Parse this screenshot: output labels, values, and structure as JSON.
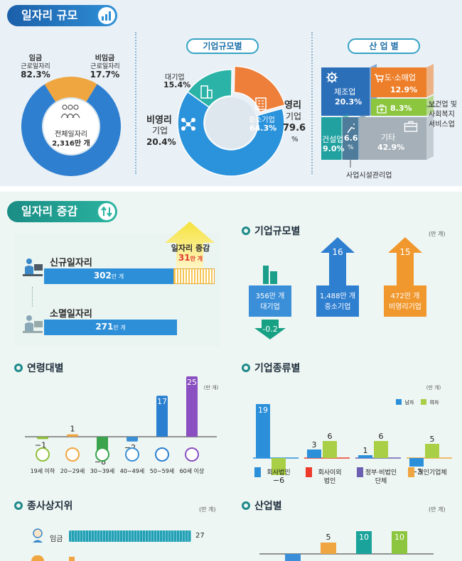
{
  "section1": {
    "title": "일자리 규모",
    "gear": {
      "left_label": [
        "임금",
        "근로일자리"
      ],
      "left_value": "82.3%",
      "right_label": [
        "비임금",
        "근로일자리"
      ],
      "right_value": "17.7%",
      "center_label": "전체일자리",
      "center_value": "2,316만 개"
    },
    "size_panel": {
      "title": "기업규모별",
      "large_label": "대기업",
      "large_value": "15.4%",
      "nonprofit_label": [
        "비영리",
        "기업"
      ],
      "nonprofit_value": "20.4%",
      "sme_label": "중소기업",
      "sme_value": "64.3%",
      "profit_label": [
        "영리",
        "기업"
      ],
      "profit_value": "79.6",
      "profit_unit": "%"
    },
    "industry_panel": {
      "title": "산 업 별",
      "manufacturing_label": "제조업",
      "manufacturing_value": "20.3%",
      "retail_label": "도·소매업",
      "retail_value": "12.9%",
      "health_value": "8.3%",
      "health_label": [
        "보건업 및",
        "사회복지",
        "서비스업"
      ],
      "construction_label": "건설업",
      "construction_value": "9.0%",
      "facility_value": "6.6",
      "facility_unit": "%",
      "other_label": "기타",
      "other_value": "42.9%",
      "facility_label": "사업시설관리업"
    }
  },
  "section2": {
    "title": "일자리 증감",
    "flow": {
      "new_label": "신규일자리",
      "new_value": "302",
      "gone_label": "소멸일자리",
      "gone_value": "271",
      "unit": "만 개",
      "net_label": "일자리 증감",
      "net_value": "31",
      "net_unit": "만 개"
    },
    "size_change": {
      "title": "기업규모별",
      "unit": "(만 개)",
      "items": [
        {
          "total": "356",
          "unit": "만 개",
          "label": "대기업",
          "change": "-0.2"
        },
        {
          "total": "1,488",
          "unit": "만 개",
          "label": "중소기업",
          "change": "16"
        },
        {
          "total": "472",
          "unit": "만 개",
          "label": "비영리기업",
          "change": "15"
        }
      ]
    },
    "status": {
      "title": "종사상지위",
      "unit": "(만 개)",
      "wage_label": "임금",
      "wage_value": "27"
    },
    "industry_change": {
      "title": "산업별",
      "unit": "(만 개)"
    }
  },
  "chart_data": [
    {
      "type": "pie",
      "title": "일자리 규모",
      "categories": [
        "임금 근로일자리",
        "비임금 근로일자리"
      ],
      "values": [
        82.3,
        17.7
      ],
      "center_text": "전체일자리 2,316만 개",
      "colors": [
        "#2e7fd0",
        "#f0a640"
      ]
    },
    {
      "type": "pie",
      "title": "기업규모별",
      "categories": [
        "대기업",
        "비영리 기업",
        "중소기업"
      ],
      "values": [
        15.4,
        20.4,
        64.3
      ],
      "colors": [
        "#2bb3a7",
        "#ee7f3a",
        "#2a93dc"
      ]
    },
    {
      "type": "table",
      "title": "산 업 별",
      "categories": [
        "제조업",
        "도·소매업",
        "보건업 및 사회복지 서비스업",
        "건설업",
        "사업시설관리업",
        "기타"
      ],
      "values": [
        20.3,
        12.9,
        8.3,
        9.0,
        6.6,
        42.9
      ]
    },
    {
      "type": "bar",
      "title": "연령대별",
      "unit": "(만 개)",
      "categories": [
        "19세 이하",
        "20~29세",
        "30~39세",
        "40~49세",
        "50~59세",
        "60세 이상"
      ],
      "values": [
        -1,
        1,
        -8,
        -2,
        17,
        25
      ],
      "colors": [
        "#8fbf3a",
        "#f0a640",
        "#3aa34b",
        "#3b8fd6",
        "#2a7fd0",
        "#8a4fc0"
      ]
    },
    {
      "type": "bar",
      "title": "기업종류별",
      "unit": "(만 개)",
      "categories": [
        "회사법인",
        "회사이외 법인",
        "정부·비법인 단체",
        "개인기업체"
      ],
      "series": [
        {
          "name": "남자",
          "values": [
            19,
            3,
            1,
            -3
          ],
          "color": "#2b8fd9"
        },
        {
          "name": "여자",
          "values": [
            -6,
            6,
            6,
            5
          ],
          "color": "#a8cf45"
        }
      ]
    },
    {
      "type": "bar",
      "title": "산업별",
      "unit": "(만 개)",
      "categories": [
        "",
        "",
        "",
        ""
      ],
      "values": [
        null,
        5,
        10,
        10
      ]
    }
  ]
}
